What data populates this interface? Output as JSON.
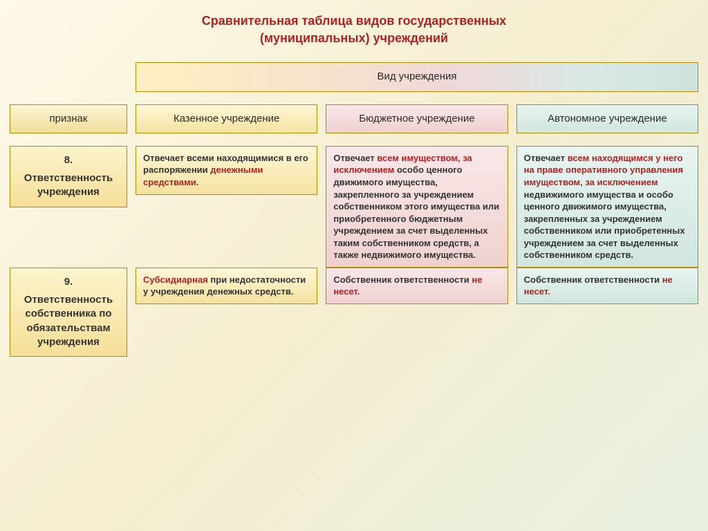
{
  "title_line1": "Сравнительная таблица видов государственных",
  "title_line2": "(муниципальных) учреждений",
  "span_header": "Вид учреждения",
  "attr_header": "признак",
  "col_headers": [
    "Казенное учреждение",
    "Бюджетное учреждение",
    "Автономное учреждение"
  ],
  "rows": [
    {
      "num": "8.",
      "label": "Ответственность учреждения",
      "cells": [
        [
          {
            "t": "Отвечает всеми находящимися в его распоряжении ",
            "c": "dark",
            "b": true
          },
          {
            "t": "денежными средствами.",
            "c": "red",
            "b": true
          }
        ],
        [
          {
            "t": "Отвечает ",
            "c": "dark",
            "b": true
          },
          {
            "t": "всем имуществом, за исключением ",
            "c": "red",
            "b": true
          },
          {
            "t": "особо ценного движимого имущества, закрепленного за учреждением собственником этого имущества или приобретенного бюджетным учреждением за счет выделенных таким собственником средств, а также недвижимого имущества.",
            "c": "dark",
            "b": true
          }
        ],
        [
          {
            "t": "Отвечает ",
            "c": "dark",
            "b": true
          },
          {
            "t": "всем находящимся у него на праве оперативного управления имуществом, за исключением ",
            "c": "red",
            "b": true
          },
          {
            "t": "недвижимого имущества и особо ценного движимого имущества, закрепленных за учреждением собственником или приобретенных учреждением за счет выделенных собственником средств.",
            "c": "dark",
            "b": true
          }
        ]
      ]
    },
    {
      "num": "9.",
      "label": "Ответственность собственника по обязательствам учреждения",
      "cells": [
        [
          {
            "t": "Субсидиарная ",
            "c": "red",
            "b": true
          },
          {
            "t": "при недостаточности у учреждения денежных средств.",
            "c": "dark",
            "b": true
          }
        ],
        [
          {
            "t": "Собственник ответственности ",
            "c": "dark",
            "b": true
          },
          {
            "t": "не несет.",
            "c": "red",
            "b": true
          }
        ],
        [
          {
            "t": "Собственник ответственности ",
            "c": "dark",
            "b": true
          },
          {
            "t": "не несет.",
            "c": "red",
            "b": true
          }
        ]
      ]
    }
  ],
  "col_bg": [
    "bg-yellow2",
    "bg-pink",
    "bg-teal"
  ],
  "colors": {
    "title": "#b22222",
    "emphasis": "#b22222",
    "border": "#b88a00",
    "bg_yellow_top": "#fdf4cc",
    "bg_yellow_bot": "#f5df98",
    "bg_pink_top": "#f9e8e8",
    "bg_pink_bot": "#f0d0d0",
    "bg_teal_top": "#e8f4f0",
    "bg_teal_bot": "#d0e6de"
  }
}
